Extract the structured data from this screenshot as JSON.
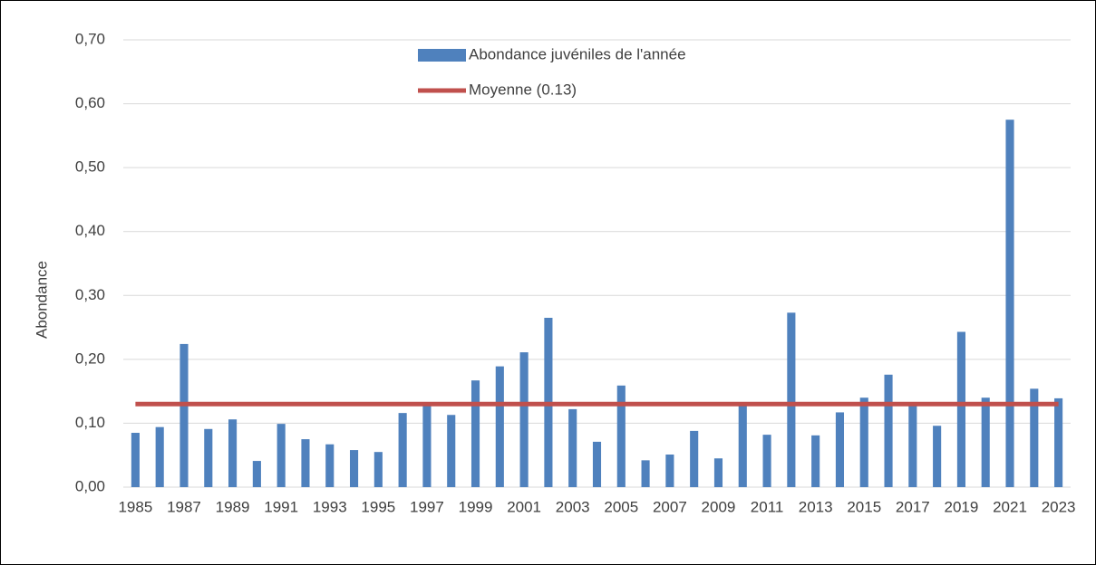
{
  "chart_data": {
    "type": "bar",
    "y_label": "Abondance",
    "categories": [
      "1985",
      null,
      "1987",
      null,
      "1989",
      null,
      "1991",
      null,
      "1993",
      null,
      "1995",
      null,
      "1997",
      null,
      "1999",
      null,
      "2001",
      null,
      "2003",
      null,
      "2005",
      null,
      "2007",
      null,
      "2009",
      null,
      "2011",
      null,
      "2013",
      null,
      "2015",
      null,
      "2017",
      null,
      "2019",
      null,
      "2021",
      null,
      "2023"
    ],
    "series": [
      {
        "name": "Abondance juvéniles de l'année",
        "color": "#4f81bd",
        "type": "bar",
        "values": [
          0.085,
          0.094,
          0.224,
          0.091,
          0.106,
          0.041,
          0.099,
          0.075,
          0.067,
          0.058,
          0.055,
          0.116,
          0.129,
          0.113,
          0.167,
          0.189,
          0.211,
          0.265,
          0.122,
          0.071,
          0.159,
          0.042,
          0.051,
          0.088,
          0.045,
          0.13,
          0.082,
          0.273,
          0.081,
          0.117,
          0.14,
          0.176,
          0.129,
          0.096,
          0.243,
          0.14,
          0.575,
          0.154,
          0.139
        ]
      },
      {
        "name": "Moyenne (0.13)",
        "color": "#c0504d",
        "type": "line",
        "values": [
          0.13,
          0.13,
          0.13,
          0.13,
          0.13,
          0.13,
          0.13,
          0.13,
          0.13,
          0.13,
          0.13,
          0.13,
          0.13,
          0.13,
          0.13,
          0.13,
          0.13,
          0.13,
          0.13,
          0.13,
          0.13,
          0.13,
          0.13,
          0.13,
          0.13,
          0.13,
          0.13,
          0.13,
          0.13,
          0.13,
          0.13,
          0.13,
          0.13,
          0.13,
          0.13,
          0.13,
          0.13,
          0.13,
          0.13
        ]
      }
    ],
    "ylim": [
      0,
      0.7
    ],
    "yticks": [
      {
        "value": 0,
        "label": "0,00"
      },
      {
        "value": 0.1,
        "label": "0,10"
      },
      {
        "value": 0.2,
        "label": "0,20"
      },
      {
        "value": 0.3,
        "label": "0,30"
      },
      {
        "value": 0.4,
        "label": "0,40"
      },
      {
        "value": 0.5,
        "label": "0,50"
      },
      {
        "value": 0.6,
        "label": "0,60"
      },
      {
        "value": 0.7,
        "label": "0,70"
      }
    ],
    "grid": true,
    "legend": "top"
  }
}
